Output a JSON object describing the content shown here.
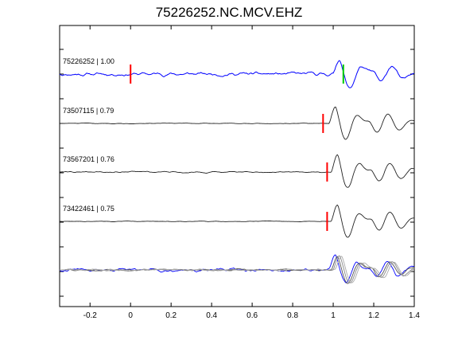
{
  "chart_data": {
    "type": "line",
    "title": "75226252.NC.MCV.EHZ",
    "xlabel": "",
    "ylabel": "",
    "xlim": [
      -0.35,
      1.4
    ],
    "xticks": [
      "-0.2",
      "0",
      "0.2",
      "0.4",
      "0.6",
      "0.8",
      "1",
      "1.2",
      "1.4"
    ],
    "xtick_values": [
      -0.2,
      0,
      0.2,
      0.4,
      0.6,
      0.8,
      1.0,
      1.2,
      1.4
    ],
    "grid": false,
    "traces": [
      {
        "label": "75226252 | 1.00",
        "color": "#0000ff",
        "pick": 0.0,
        "pick_color": "#ff0000",
        "second_pick": 1.05,
        "second_pick_color": "#00cc00",
        "onset": -0.35,
        "amp": 0.75
      },
      {
        "label": "73507115 | 0.79",
        "color": "#222222",
        "pick": 0.95,
        "pick_color": "#ff0000",
        "onset": 0.98,
        "amp": 1.0
      },
      {
        "label": "73567201 | 0.76",
        "color": "#222222",
        "pick": 0.97,
        "pick_color": "#ff0000",
        "onset": 0.99,
        "amp": 1.0
      },
      {
        "label": "73422461 | 0.75",
        "color": "#222222",
        "pick": 0.97,
        "pick_color": "#ff0000",
        "onset": 0.99,
        "amp": 1.0
      }
    ],
    "overlay": {
      "series_colors": [
        "#0000ff",
        "#555555",
        "#888888",
        "#aaaaaa"
      ]
    }
  }
}
